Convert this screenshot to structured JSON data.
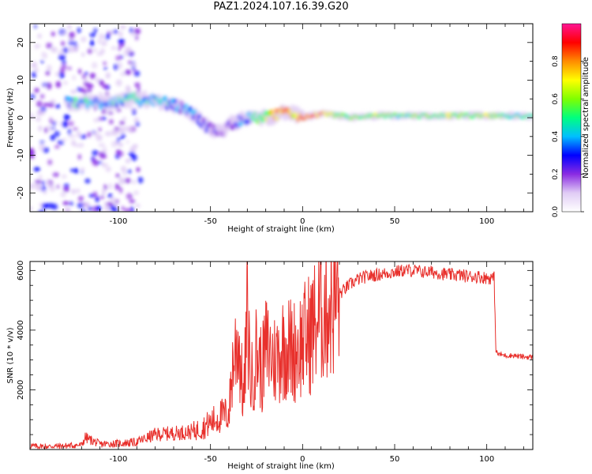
{
  "title": "PAZ1.2024.107.16.39.G20",
  "colors": {
    "snr_line": "#e8302c",
    "spectral_gradient": [
      "#ffffff",
      "#e0ccf5",
      "#8a2be2",
      "#0000ff",
      "#00bfff",
      "#00ff7f",
      "#7fff00",
      "#ffff00",
      "#ff8c00",
      "#ff0000",
      "#ff1493"
    ]
  },
  "chart_data": [
    {
      "type": "heatmap",
      "xlabel": "Height of straight line (km)",
      "ylabel": "Frequency (Hz)",
      "xlim": [
        -148,
        125
      ],
      "ylim": [
        -25,
        25
      ],
      "x_ticks": [
        -100,
        -50,
        0,
        50,
        100
      ],
      "y_ticks": [
        20,
        10,
        0,
        -10,
        -20
      ],
      "colorbar": {
        "label": "Normalized spectral amplitude",
        "range": [
          0,
          1
        ],
        "ticks": [
          "0.0",
          "0.2",
          "0.4",
          "0.6",
          "0.8"
        ]
      },
      "ridge": {
        "x": [
          -128,
          -120,
          -110,
          -100,
          -90,
          -80,
          -70,
          -62,
          -55,
          -50,
          -45,
          -40,
          -35,
          -30,
          -25,
          -20,
          -15,
          -10,
          -5,
          0,
          10,
          20,
          30,
          40,
          50,
          60,
          70,
          80,
          90,
          100,
          110,
          125
        ],
        "y": [
          4,
          4,
          4,
          4.5,
          5,
          4.5,
          3.5,
          2,
          -1,
          -3,
          -4,
          -2,
          -1,
          0,
          0,
          0,
          0.5,
          1.5,
          1,
          0,
          1,
          0.5,
          0,
          0.5,
          0.5,
          0.5,
          0.5,
          0.5,
          0.5,
          0.5,
          0.5,
          0.5
        ],
        "amplitude": [
          0.35,
          0.4,
          0.35,
          0.4,
          0.45,
          0.4,
          0.35,
          0.3,
          0.25,
          0.25,
          0.2,
          0.25,
          0.3,
          0.3,
          0.5,
          0.6,
          0.7,
          0.85,
          0.7,
          0.8,
          0.75,
          0.6,
          0.55,
          0.6,
          0.5,
          0.55,
          0.5,
          0.6,
          0.55,
          0.6,
          0.5,
          0.5
        ]
      }
    },
    {
      "type": "line",
      "xlabel": "Height of straight line (km)",
      "ylabel": "SNR (10 * v/v)",
      "xlim": [
        -148,
        125
      ],
      "ylim": [
        0,
        6300
      ],
      "x_ticks": [
        -100,
        -50,
        0,
        50,
        100
      ],
      "y_ticks": [
        2000,
        4000,
        6000
      ],
      "series": [
        {
          "x": [
            -148,
            -140,
            -130,
            -120,
            -118,
            -110,
            -100,
            -90,
            -80,
            -70,
            -60,
            -55,
            -50,
            -45,
            -40,
            -38,
            -35,
            -32,
            -30,
            -28,
            -25,
            -22,
            -20,
            -15,
            -10,
            -5,
            0,
            5,
            10,
            15,
            20,
            25,
            30,
            35,
            40,
            45,
            50,
            55,
            60,
            65,
            70,
            75,
            80,
            85,
            90,
            95,
            100,
            104,
            105,
            106,
            110,
            115,
            120,
            125
          ],
          "y": [
            120,
            100,
            120,
            150,
            400,
            180,
            200,
            250,
            500,
            550,
            600,
            700,
            900,
            1100,
            1200,
            2800,
            3800,
            1600,
            4500,
            2200,
            3300,
            2600,
            3400,
            3000,
            3500,
            3300,
            3600,
            4000,
            4600,
            4900,
            5200,
            5500,
            5700,
            5800,
            5850,
            5900,
            5950,
            6000,
            6000,
            5950,
            5950,
            5900,
            5850,
            5850,
            5800,
            5800,
            5750,
            5750,
            3300,
            3200,
            3150,
            3150,
            3100,
            3100
          ]
        }
      ]
    }
  ]
}
